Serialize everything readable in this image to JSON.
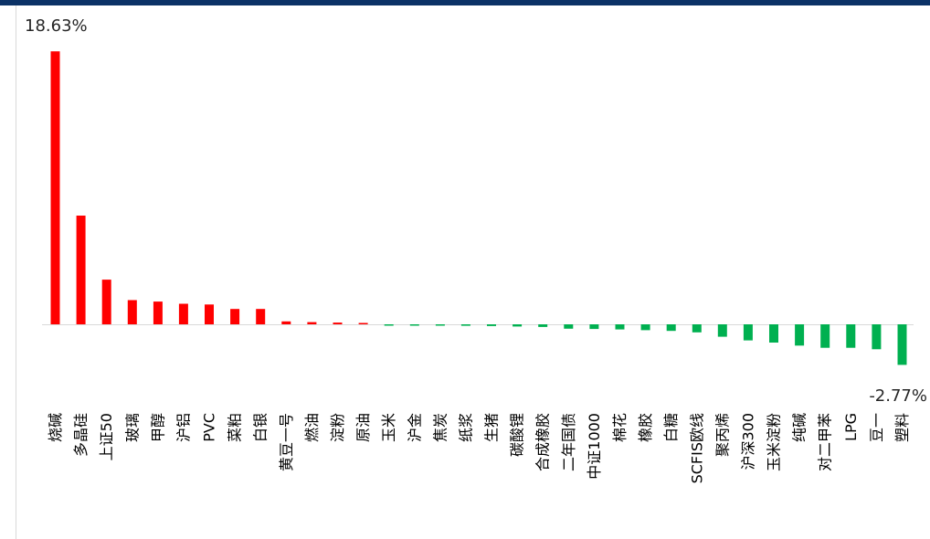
{
  "chart_data": {
    "type": "bar",
    "title": "",
    "xlabel": "",
    "ylabel": "",
    "ylim": [
      -2.77,
      18.63
    ],
    "grid": false,
    "legend": "none",
    "colors": {
      "positive": "#ff0000",
      "negative": "#00b050",
      "header": "#0b3266",
      "axis": "#d9d9d9"
    },
    "categories": [
      "烧碱",
      "多晶硅",
      "上证50",
      "玻璃",
      "甲醇",
      "沪铝",
      "PVC",
      "菜粕",
      "白银",
      "黄豆一号",
      "燃油",
      "淀粉",
      "原油",
      "玉米",
      "沪金",
      "焦炭",
      "纸浆",
      "生猪",
      "碳酸锂",
      "合成橡胶",
      "二年国债",
      "中证1000",
      "棉花",
      "橡胶",
      "白糖",
      "SCFIS欧线",
      "聚丙烯",
      "沪深300",
      "玉米淀粉",
      "纯碱",
      "对二甲苯",
      "LPG",
      "豆一",
      "塑料"
    ],
    "values": [
      18.63,
      7.42,
      3.05,
      1.65,
      1.55,
      1.4,
      1.35,
      1.05,
      1.05,
      0.2,
      0.15,
      0.12,
      0.08,
      -0.05,
      -0.06,
      -0.07,
      -0.1,
      -0.12,
      -0.15,
      -0.18,
      -0.3,
      -0.32,
      -0.35,
      -0.4,
      -0.45,
      -0.55,
      -0.85,
      -1.1,
      -1.25,
      -1.45,
      -1.6,
      -1.6,
      -1.7,
      -2.77
    ],
    "data_labels": {
      "max": "18.63%",
      "min": "-2.77%"
    }
  }
}
